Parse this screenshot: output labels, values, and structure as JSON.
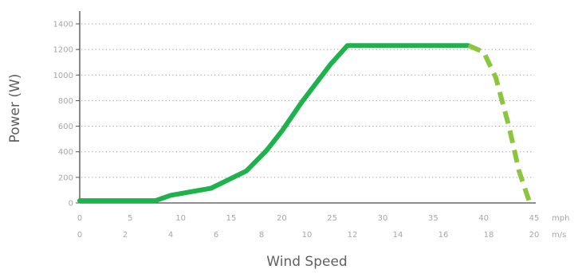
{
  "chart_data": {
    "type": "line",
    "xlabel": "Wind Speed",
    "ylabel": "Power (W)",
    "x_unit_primary": "mph",
    "x_unit_secondary": "m/s",
    "xlim": [
      0,
      45
    ],
    "ylim": [
      0,
      1400
    ],
    "grid": true,
    "x_ticks_mph": [
      "0",
      "5",
      "10",
      "15",
      "20",
      "25",
      "30",
      "35",
      "40",
      "45"
    ],
    "x_tick_values_mph": [
      0,
      5,
      10,
      15,
      20,
      25,
      30,
      35,
      40,
      45
    ],
    "x_ticks_ms": [
      "0",
      "2",
      "4",
      "6",
      "8",
      "10",
      "12",
      "14",
      "16",
      "18",
      "20"
    ],
    "x_tick_values_ms": [
      0,
      2,
      4,
      6,
      8,
      10,
      12,
      14,
      16,
      18,
      20
    ],
    "y_ticks": [
      "0",
      "200",
      "400",
      "600",
      "800",
      "1000",
      "1200",
      "1400"
    ],
    "y_tick_values": [
      0,
      200,
      400,
      600,
      800,
      1000,
      1200,
      1400
    ],
    "series": [
      {
        "style": "solid",
        "color": "#1db24b",
        "x": [
          0,
          7.5,
          9,
          13,
          16.5,
          18.5,
          20,
          22,
          24.8,
          26.5,
          30,
          38.5
        ],
        "y": [
          18,
          18,
          60,
          115,
          250,
          410,
          560,
          790,
          1080,
          1230,
          1230,
          1230
        ]
      },
      {
        "style": "dashed",
        "color": "#8cc63f",
        "x": [
          38.5,
          40,
          41.2,
          42.5,
          43.5,
          44.5
        ],
        "y": [
          1230,
          1180,
          980,
          600,
          250,
          15
        ]
      }
    ]
  }
}
